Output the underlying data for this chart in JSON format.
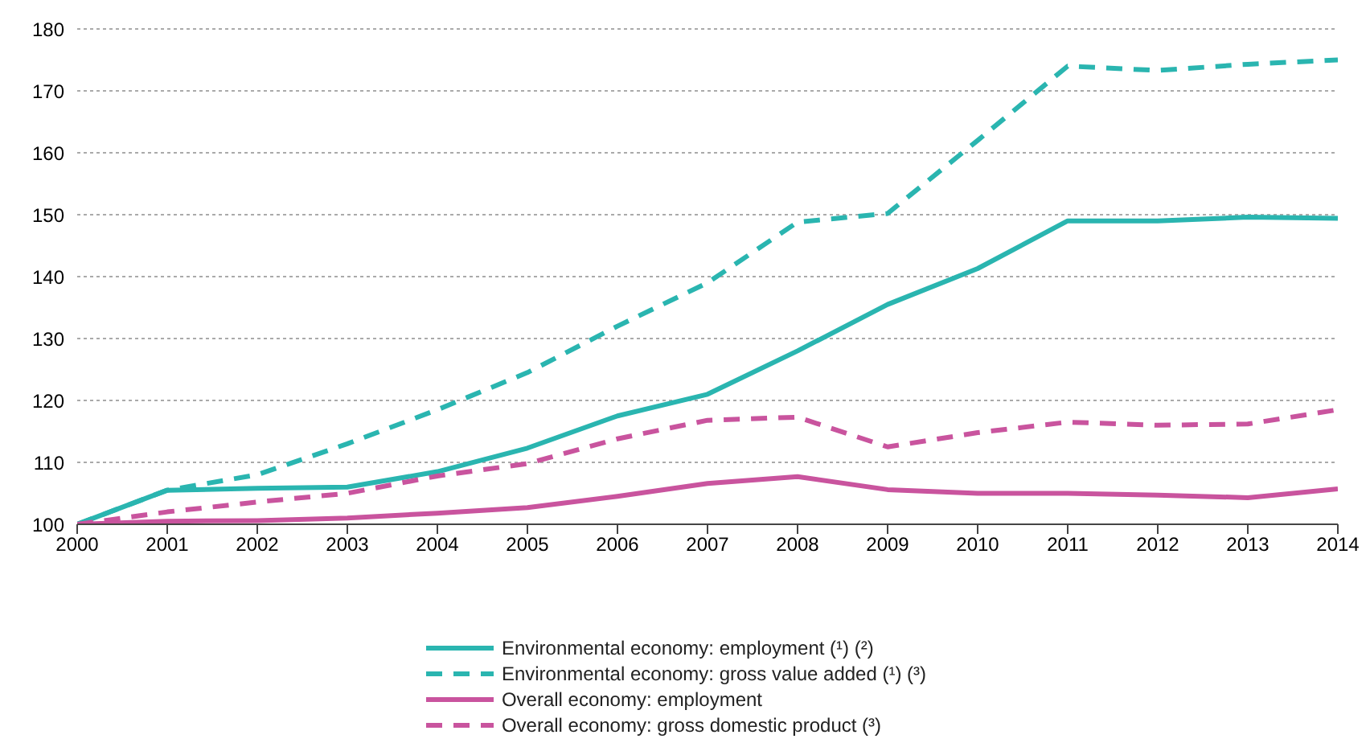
{
  "chart_data": {
    "type": "line",
    "x": [
      2000,
      2001,
      2002,
      2003,
      2004,
      2005,
      2006,
      2007,
      2008,
      2009,
      2010,
      2011,
      2012,
      2013,
      2014
    ],
    "xlim": [
      2000,
      2014
    ],
    "xticks": [
      2000,
      2001,
      2002,
      2003,
      2004,
      2005,
      2006,
      2007,
      2008,
      2009,
      2010,
      2011,
      2012,
      2013,
      2014
    ],
    "ylim": [
      100,
      180
    ],
    "yticks": [
      100,
      110,
      120,
      130,
      140,
      150,
      160,
      170,
      180
    ],
    "grid": "y",
    "legend": "bottom",
    "marker": "none",
    "series": [
      {
        "name": "Environmental economy: employment (¹) (²)",
        "color": "#2ab5b0",
        "line_style": "solid",
        "values": [
          100,
          105.5,
          105.8,
          106,
          108.5,
          112.3,
          117.5,
          121,
          128,
          135.5,
          141.3,
          149,
          149,
          149.6,
          149.4
        ]
      },
      {
        "name": "Environmental economy: gross value added (¹) (³)",
        "color": "#2ab5b0",
        "line_style": "dashed",
        "values": [
          100,
          105.5,
          108,
          113,
          118.5,
          124.5,
          132,
          139,
          148.8,
          150.2,
          162,
          174,
          173.3,
          174.3,
          175
        ]
      },
      {
        "name": "Overall economy: employment",
        "color": "#c9549e",
        "line_style": "solid",
        "values": [
          100,
          100.5,
          100.6,
          101,
          101.8,
          102.7,
          104.5,
          106.6,
          107.7,
          105.6,
          105,
          105,
          104.7,
          104.3,
          105.7
        ]
      },
      {
        "name": "Overall economy: gross domestic product (³)",
        "color": "#c9549e",
        "line_style": "dashed",
        "values": [
          100,
          102,
          103.6,
          105,
          107.8,
          109.8,
          113.8,
          116.8,
          117.3,
          112.5,
          114.8,
          116.5,
          116,
          116.2,
          118.5
        ]
      }
    ]
  }
}
